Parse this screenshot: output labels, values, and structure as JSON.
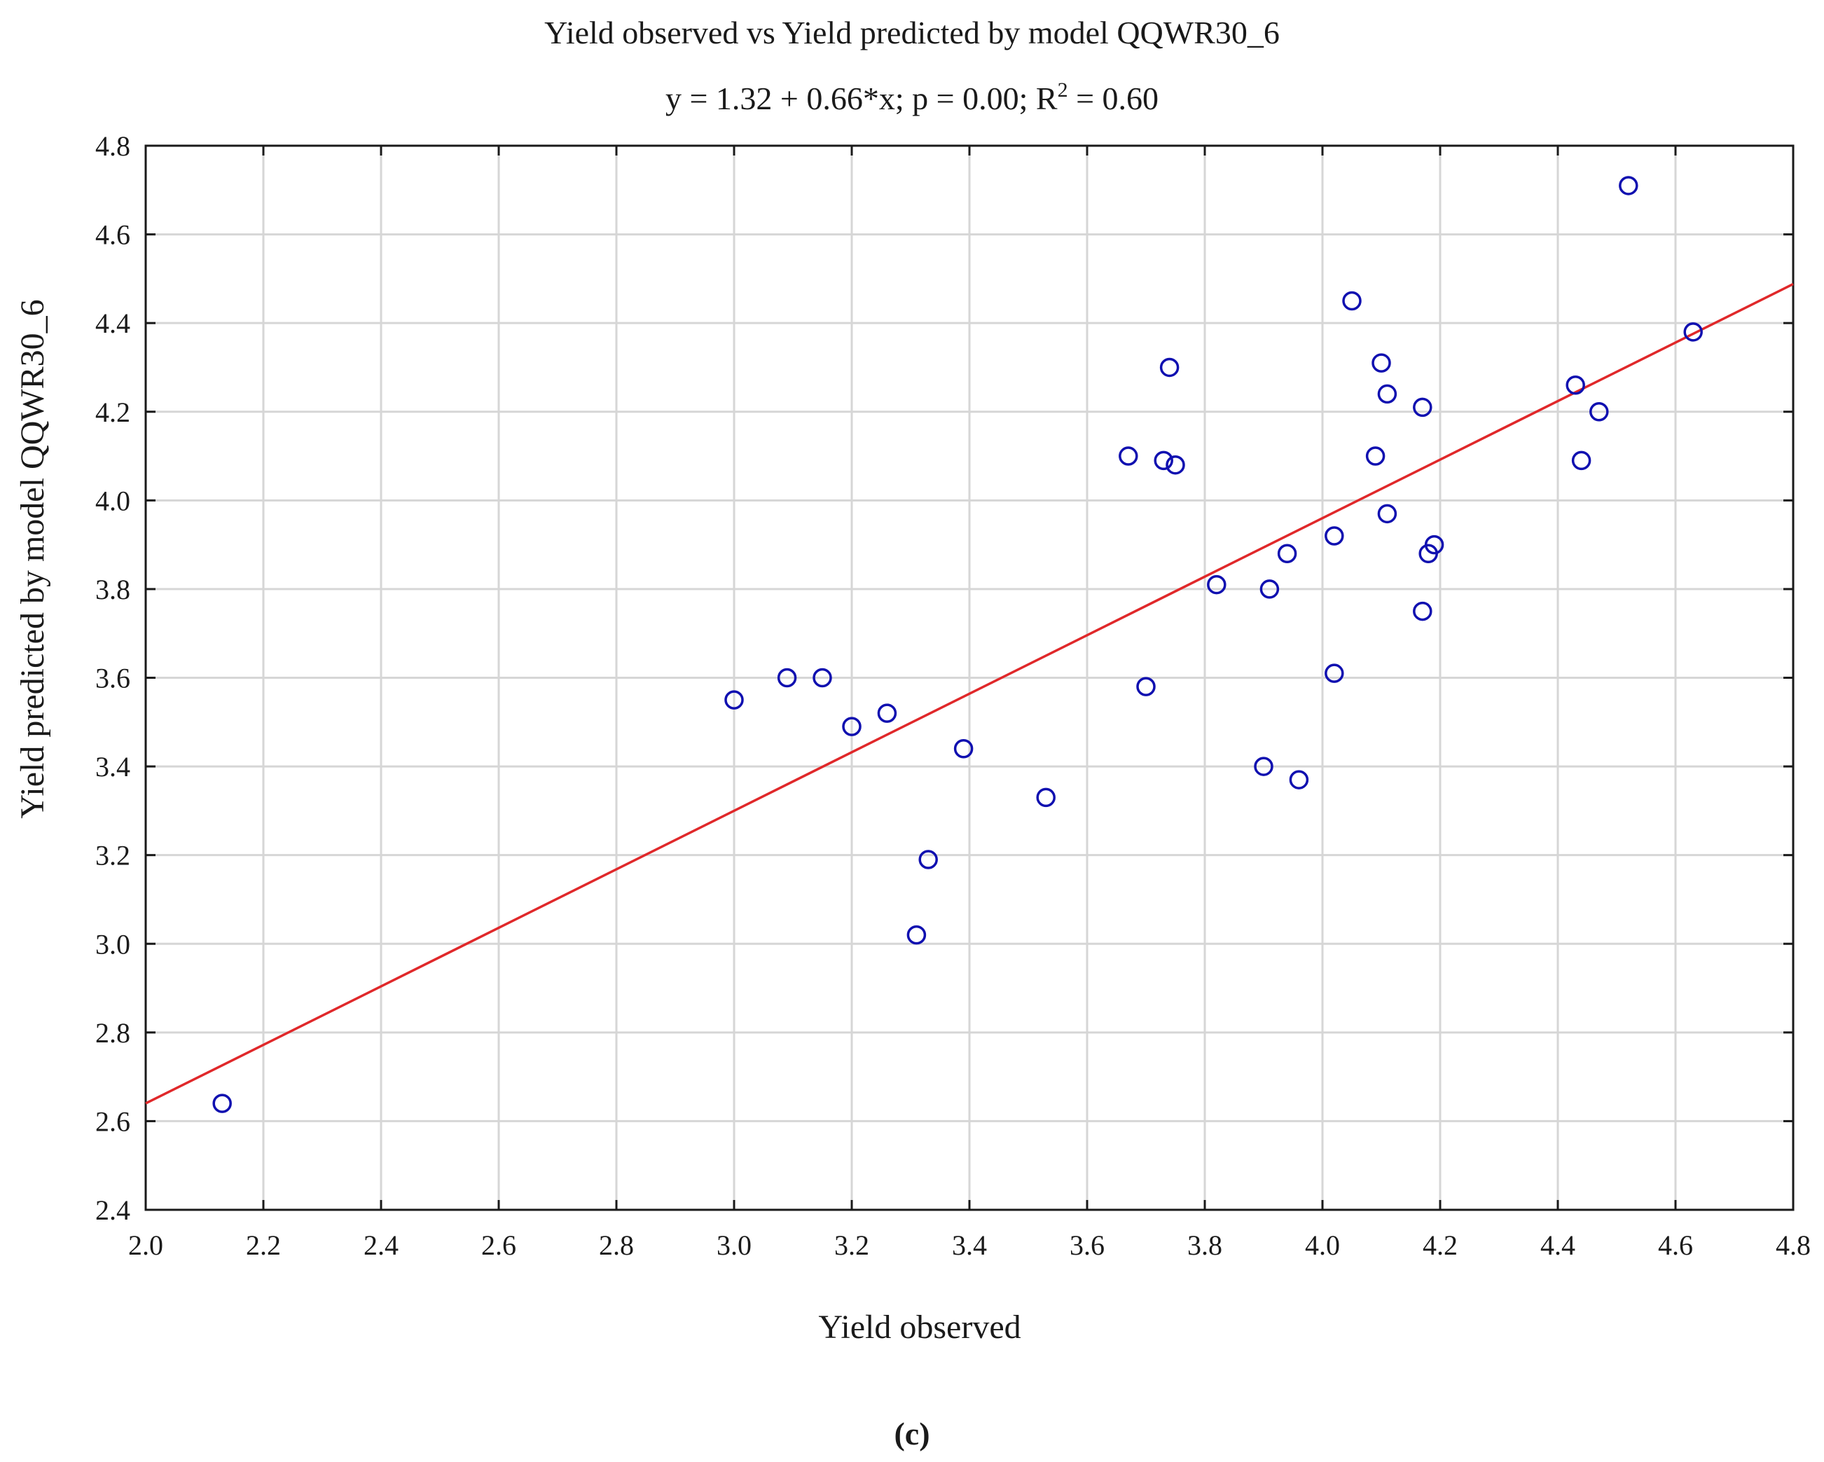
{
  "chart_data": {
    "type": "scatter",
    "title": "Yield observed vs Yield predicted by model QQWR30_6",
    "subtitle_prefix": "y = 1.32 + 0.66*x; p = 0.00; R",
    "subtitle_sup": "2",
    "subtitle_suffix": " = 0.60",
    "xlabel": "Yield observed",
    "ylabel": "Yield predicted by model QQWR30_6",
    "panel_label": "(c)",
    "xlim": [
      2.0,
      4.8
    ],
    "ylim": [
      2.4,
      4.8
    ],
    "xticks": [
      "2.0",
      "2.2",
      "2.4",
      "2.6",
      "2.8",
      "3.0",
      "3.2",
      "3.4",
      "3.6",
      "3.8",
      "4.0",
      "4.2",
      "4.4",
      "4.6",
      "4.8"
    ],
    "yticks": [
      "2.4",
      "2.6",
      "2.8",
      "3.0",
      "3.2",
      "3.4",
      "3.6",
      "3.8",
      "4.0",
      "4.2",
      "4.4",
      "4.6",
      "4.8"
    ],
    "grid": true,
    "fit_line": {
      "intercept": 1.32,
      "slope": 0.66,
      "color": "#e0282a"
    },
    "point_color": "#1010b0",
    "points": [
      [
        2.13,
        2.64
      ],
      [
        3.0,
        3.55
      ],
      [
        3.09,
        3.6
      ],
      [
        3.15,
        3.6
      ],
      [
        3.2,
        3.49
      ],
      [
        3.26,
        3.52
      ],
      [
        3.31,
        3.02
      ],
      [
        3.33,
        3.19
      ],
      [
        3.39,
        3.44
      ],
      [
        3.53,
        3.33
      ],
      [
        3.67,
        4.1
      ],
      [
        3.7,
        3.58
      ],
      [
        3.73,
        4.09
      ],
      [
        3.74,
        4.3
      ],
      [
        3.75,
        4.08
      ],
      [
        3.82,
        3.81
      ],
      [
        3.9,
        3.4
      ],
      [
        3.91,
        3.8
      ],
      [
        3.94,
        3.88
      ],
      [
        3.96,
        3.37
      ],
      [
        4.02,
        3.61
      ],
      [
        4.02,
        3.92
      ],
      [
        4.05,
        4.45
      ],
      [
        4.09,
        4.1
      ],
      [
        4.1,
        4.31
      ],
      [
        4.11,
        4.24
      ],
      [
        4.11,
        3.97
      ],
      [
        4.17,
        4.21
      ],
      [
        4.17,
        3.75
      ],
      [
        4.18,
        3.88
      ],
      [
        4.19,
        3.9
      ],
      [
        4.43,
        4.26
      ],
      [
        4.44,
        4.09
      ],
      [
        4.47,
        4.2
      ],
      [
        4.52,
        4.71
      ],
      [
        4.63,
        4.38
      ]
    ]
  }
}
